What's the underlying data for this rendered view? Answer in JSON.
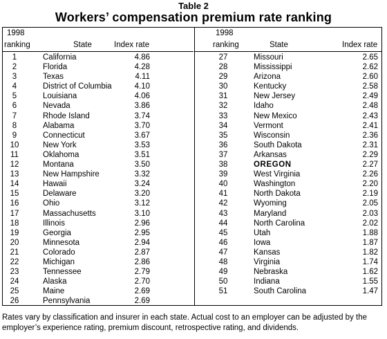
{
  "table_label": "Table 2",
  "title": "Workers’ compensation premium rate ranking",
  "headers": {
    "year": "1998",
    "ranking": "ranking",
    "state": "State",
    "index": "Index rate"
  },
  "rows": [
    {
      "rank": "1",
      "state": "California",
      "index": "4.86"
    },
    {
      "rank": "2",
      "state": "Florida",
      "index": "4.28"
    },
    {
      "rank": "3",
      "state": "Texas",
      "index": "4.11"
    },
    {
      "rank": "4",
      "state": "District of Columbia",
      "index": "4.10"
    },
    {
      "rank": "5",
      "state": "Louisiana",
      "index": "4.06"
    },
    {
      "rank": "6",
      "state": "Nevada",
      "index": "3.86"
    },
    {
      "rank": "7",
      "state": "Rhode Island",
      "index": "3.74"
    },
    {
      "rank": "8",
      "state": "Alabama",
      "index": "3.70"
    },
    {
      "rank": "9",
      "state": "Connecticut",
      "index": "3.67"
    },
    {
      "rank": "10",
      "state": "New York",
      "index": "3.53"
    },
    {
      "rank": "11",
      "state": "Oklahoma",
      "index": "3.51"
    },
    {
      "rank": "12",
      "state": "Montana",
      "index": "3.50"
    },
    {
      "rank": "13",
      "state": "New Hampshire",
      "index": "3.32"
    },
    {
      "rank": "14",
      "state": "Hawaii",
      "index": "3.24"
    },
    {
      "rank": "15",
      "state": "Delaware",
      "index": "3.20"
    },
    {
      "rank": "16",
      "state": "Ohio",
      "index": "3.12"
    },
    {
      "rank": "17",
      "state": "Massachusetts",
      "index": "3.10"
    },
    {
      "rank": "18",
      "state": "Illinois",
      "index": "2.96"
    },
    {
      "rank": "19",
      "state": "Georgia",
      "index": "2.95"
    },
    {
      "rank": "20",
      "state": "Minnesota",
      "index": "2.94"
    },
    {
      "rank": "21",
      "state": "Colorado",
      "index": "2.87"
    },
    {
      "rank": "22",
      "state": "Michigan",
      "index": "2.86"
    },
    {
      "rank": "23",
      "state": "Tennessee",
      "index": "2.79"
    },
    {
      "rank": "24",
      "state": "Alaska",
      "index": "2.70"
    },
    {
      "rank": "25",
      "state": "Maine",
      "index": "2.69"
    },
    {
      "rank": "26",
      "state": "Pennsylvania",
      "index": "2.69"
    },
    {
      "rank": "27",
      "state": "Missouri",
      "index": "2.65"
    },
    {
      "rank": "28",
      "state": "Mississippi",
      "index": "2.62"
    },
    {
      "rank": "29",
      "state": "Arizona",
      "index": "2.60"
    },
    {
      "rank": "30",
      "state": "Kentucky",
      "index": "2.58"
    },
    {
      "rank": "31",
      "state": "New Jersey",
      "index": "2.49"
    },
    {
      "rank": "32",
      "state": "Idaho",
      "index": "2.48"
    },
    {
      "rank": "33",
      "state": "New Mexico",
      "index": "2.43"
    },
    {
      "rank": "34",
      "state": "Vermont",
      "index": "2.41"
    },
    {
      "rank": "35",
      "state": "Wisconsin",
      "index": "2.36"
    },
    {
      "rank": "36",
      "state": "South Dakota",
      "index": "2.31"
    },
    {
      "rank": "37",
      "state": "Arkansas",
      "index": "2.29"
    },
    {
      "rank": "38",
      "state": "OREGON",
      "index": "2.27",
      "highlight": true
    },
    {
      "rank": "39",
      "state": "West Virginia",
      "index": "2.26"
    },
    {
      "rank": "40",
      "state": "Washington",
      "index": "2.20"
    },
    {
      "rank": "41",
      "state": "North Dakota",
      "index": "2.19"
    },
    {
      "rank": "42",
      "state": "Wyoming",
      "index": "2.05"
    },
    {
      "rank": "43",
      "state": "Maryland",
      "index": "2.03"
    },
    {
      "rank": "44",
      "state": "North Carolina",
      "index": "2.02"
    },
    {
      "rank": "45",
      "state": "Utah",
      "index": "1.88"
    },
    {
      "rank": "46",
      "state": "Iowa",
      "index": "1.87"
    },
    {
      "rank": "47",
      "state": "Kansas",
      "index": "1.82"
    },
    {
      "rank": "48",
      "state": "Virginia",
      "index": "1.74"
    },
    {
      "rank": "49",
      "state": "Nebraska",
      "index": "1.62"
    },
    {
      "rank": "50",
      "state": "Indiana",
      "index": "1.55"
    },
    {
      "rank": "51",
      "state": "South Carolina",
      "index": "1.47"
    }
  ],
  "footnote": "Rates vary by classification and insurer in each state.  Actual cost to an employer can be adjusted by the employer’s experience rating, premium discount, retrospective rating, and dividends."
}
